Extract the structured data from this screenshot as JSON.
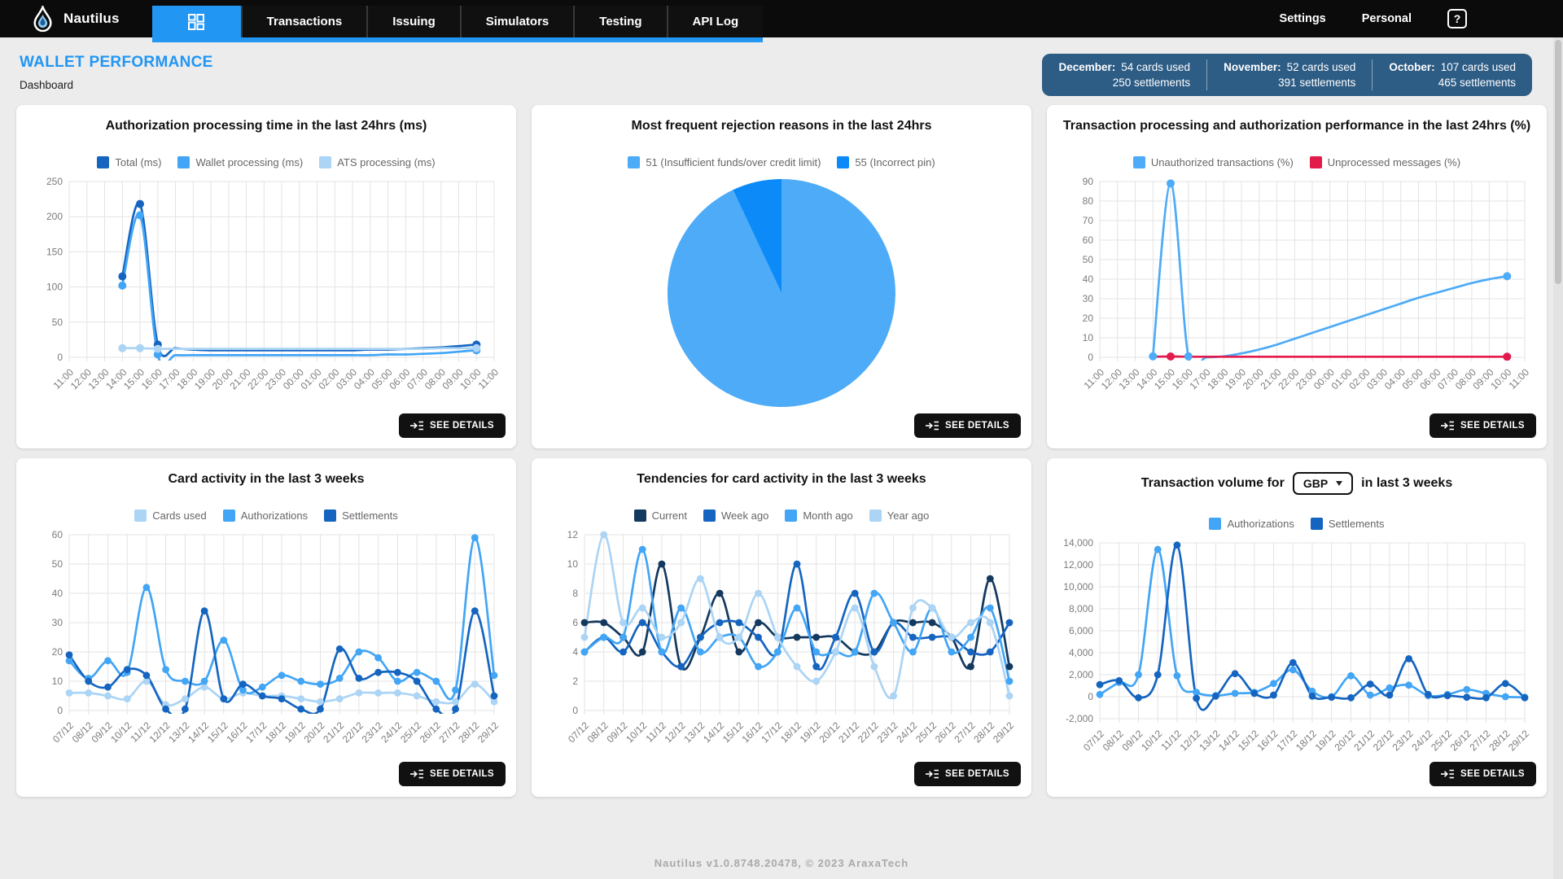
{
  "nav": {
    "brand": "Nautilus",
    "tabs": [
      {
        "label": "Transactions"
      },
      {
        "label": "Issuing"
      },
      {
        "label": "Simulators"
      },
      {
        "label": "Testing"
      },
      {
        "label": "API Log"
      }
    ],
    "settings_label": "Settings",
    "personal_label": "Personal",
    "help_glyph": "?"
  },
  "header": {
    "title": "WALLET PERFORMANCE",
    "subtitle": "Dashboard",
    "stats": [
      {
        "month": "December:",
        "cards_used": "54 cards used",
        "settlements": "250 settlements"
      },
      {
        "month": "November:",
        "cards_used": "52 cards used",
        "settlements": "391 settlements"
      },
      {
        "month": "October:",
        "cards_used": "107 cards used",
        "settlements": "465 settlements"
      }
    ]
  },
  "see_details_label": "SEE DETAILS",
  "footer": "Nautilus v1.0.8748.20478, © 2023 AraxaTech",
  "chart_data": [
    {
      "id": "authorization-processing-time",
      "type": "line",
      "title": "Authorization processing time in the last 24hrs (ms)",
      "ylim": [
        0,
        250
      ],
      "yticks": [
        0,
        50,
        100,
        150,
        200,
        250
      ],
      "categories": [
        "11:00",
        "12:00",
        "13:00",
        "14:00",
        "15:00",
        "16:00",
        "17:00",
        "18:00",
        "19:00",
        "20:00",
        "21:00",
        "22:00",
        "23:00",
        "00:00",
        "01:00",
        "02:00",
        "03:00",
        "04:00",
        "05:00",
        "06:00",
        "07:00",
        "08:00",
        "09:00",
        "10:00",
        "11:00"
      ],
      "series": [
        {
          "name": "Total (ms)",
          "color": "#1565c0",
          "values": [
            null,
            null,
            null,
            115,
            218,
            18,
            13,
            11,
            10,
            10,
            10,
            10,
            10,
            10,
            10,
            10,
            10,
            11,
            11,
            12,
            13,
            14,
            16,
            18,
            null
          ],
          "dot_indices": [
            3,
            4,
            5,
            23
          ]
        },
        {
          "name": "Wallet processing (ms)",
          "color": "#42a5f5",
          "values": [
            null,
            null,
            null,
            102,
            202,
            4,
            3,
            3,
            3,
            3,
            3,
            3,
            3,
            3,
            3,
            3,
            3,
            3,
            4,
            4,
            5,
            6,
            8,
            10,
            null
          ],
          "dot_indices": [
            3,
            4,
            5,
            23
          ]
        },
        {
          "name": "ATS processing (ms)",
          "color": "#abd4f5",
          "values": [
            null,
            null,
            null,
            13,
            13,
            12,
            12,
            12,
            12,
            12,
            12,
            12,
            12,
            12,
            12,
            12,
            12,
            12,
            12,
            12,
            12,
            13,
            13,
            13,
            null
          ],
          "dot_indices": [
            3,
            4,
            5,
            23
          ]
        }
      ]
    },
    {
      "id": "rejection-reasons",
      "type": "pie",
      "title": "Most frequent rejection reasons in the last 24hrs",
      "series": [
        {
          "name": "51 (Insufficient funds/over credit limit)",
          "color": "#4dabf7",
          "value": 93
        },
        {
          "name": "55 (Incorrect pin)",
          "color": "#0c8bf8",
          "value": 7
        }
      ]
    },
    {
      "id": "transaction-processing-performance",
      "type": "line",
      "title": "Transaction processing and authorization performance in the last 24hrs (%)",
      "ylim": [
        0,
        90
      ],
      "yticks": [
        0,
        10,
        20,
        30,
        40,
        50,
        60,
        70,
        80,
        90
      ],
      "categories": [
        "11:00",
        "12:00",
        "13:00",
        "14:00",
        "15:00",
        "16:00",
        "17:00",
        "18:00",
        "19:00",
        "20:00",
        "21:00",
        "22:00",
        "23:00",
        "00:00",
        "01:00",
        "02:00",
        "03:00",
        "04:00",
        "05:00",
        "06:00",
        "07:00",
        "08:00",
        "09:00",
        "10:00",
        "11:00"
      ],
      "series": [
        {
          "name": "Unauthorized transactions (%)",
          "color": "#4dabf7",
          "values": [
            null,
            null,
            null,
            0.5,
            89,
            0.5,
            0,
            0.5,
            2,
            4,
            6.5,
            9.5,
            12.5,
            15.5,
            18.5,
            21.5,
            24.5,
            27.5,
            30.5,
            33,
            35.5,
            38,
            40,
            41.5,
            null
          ],
          "dot_indices": [
            3,
            4,
            5,
            23
          ]
        },
        {
          "name": "Unprocessed messages (%)",
          "color": "#e31a4c",
          "values": [
            null,
            null,
            null,
            0.3,
            0.4,
            0.3,
            0.3,
            0.3,
            0.3,
            0.3,
            0.3,
            0.3,
            0.3,
            0.3,
            0.3,
            0.3,
            0.3,
            0.3,
            0.3,
            0.3,
            0.3,
            0.3,
            0.3,
            0.3,
            null
          ],
          "dot_indices": [
            4,
            23
          ]
        }
      ]
    },
    {
      "id": "card-activity",
      "type": "line",
      "title": "Card activity in the last 3 weeks",
      "ylim": [
        0,
        60
      ],
      "yticks": [
        0,
        10,
        20,
        30,
        40,
        50,
        60
      ],
      "categories": [
        "07/12",
        "08/12",
        "09/12",
        "10/12",
        "11/12",
        "12/12",
        "13/12",
        "14/12",
        "15/12",
        "16/12",
        "17/12",
        "18/12",
        "19/12",
        "20/12",
        "21/12",
        "22/12",
        "23/12",
        "24/12",
        "25/12",
        "26/12",
        "27/12",
        "28/12",
        "29/12"
      ],
      "series": [
        {
          "name": "Cards used",
          "color": "#abd4f5",
          "values": [
            6,
            6,
            5,
            4,
            10,
            2,
            4,
            8,
            4,
            6,
            5,
            5,
            4,
            3,
            4,
            6,
            6,
            6,
            5,
            3,
            3,
            9,
            3
          ]
        },
        {
          "name": "Authorizations",
          "color": "#42a5f5",
          "values": [
            17,
            11,
            17,
            13,
            42,
            14,
            10,
            10,
            24,
            7,
            8,
            12,
            10,
            9,
            11,
            20,
            18,
            10,
            13,
            10,
            7,
            59,
            12
          ]
        },
        {
          "name": "Settlements",
          "color": "#1565c0",
          "values": [
            19,
            10,
            8,
            14,
            12,
            0.5,
            0.5,
            34,
            4,
            9,
            5,
            4,
            0.5,
            0.5,
            21,
            11,
            13,
            13,
            10,
            0.5,
            0.5,
            34,
            5
          ]
        }
      ]
    },
    {
      "id": "tendencies-card-activity",
      "type": "line",
      "title": "Tendencies for card activity in the last 3 weeks",
      "ylim": [
        0,
        12
      ],
      "yticks": [
        0,
        2,
        4,
        6,
        8,
        10,
        12
      ],
      "categories": [
        "07/12",
        "08/12",
        "09/12",
        "10/12",
        "11/12",
        "12/12",
        "13/12",
        "14/12",
        "15/12",
        "16/12",
        "17/12",
        "18/12",
        "19/12",
        "20/12",
        "21/12",
        "22/12",
        "23/12",
        "24/12",
        "25/12",
        "26/12",
        "27/12",
        "28/12",
        "29/12"
      ],
      "series": [
        {
          "name": "Current",
          "color": "#14395e",
          "values": [
            6,
            6,
            5,
            4,
            10,
            3,
            5,
            8,
            4,
            6,
            5,
            5,
            5,
            5,
            4,
            4,
            6,
            6,
            6,
            5,
            3,
            9,
            3
          ]
        },
        {
          "name": "Week ago",
          "color": "#1565c0",
          "values": [
            4,
            5,
            4,
            6,
            4,
            3,
            5,
            6,
            6,
            5,
            4,
            10,
            3,
            5,
            8,
            4,
            6,
            5,
            5,
            5,
            4,
            4,
            6
          ]
        },
        {
          "name": "Month ago",
          "color": "#42a5f5",
          "values": [
            4,
            5,
            5,
            11,
            4,
            7,
            4,
            5,
            5,
            3,
            4,
            7,
            4,
            4,
            4,
            8,
            6,
            4,
            7,
            4,
            5,
            7,
            2
          ]
        },
        {
          "name": "Year ago",
          "color": "#abd4f5",
          "values": [
            5,
            12,
            6,
            7,
            5,
            6,
            9,
            5,
            5,
            8,
            5,
            3,
            2,
            4,
            7,
            3,
            1,
            7,
            7,
            5,
            6,
            6,
            1
          ]
        }
      ]
    },
    {
      "id": "transaction-volume",
      "type": "line",
      "title_parts": {
        "before": "Transaction volume for",
        "select": "GBP",
        "after": "in last 3 weeks"
      },
      "ylim": [
        -2000,
        14000
      ],
      "yticks": [
        -2000,
        0,
        2000,
        4000,
        6000,
        8000,
        10000,
        12000,
        14000
      ],
      "ytick_labels": [
        "-2,000",
        "0",
        "2,000",
        "4,000",
        "6,000",
        "8,000",
        "10,000",
        "12,000",
        "14,000"
      ],
      "categories": [
        "07/12",
        "08/12",
        "09/12",
        "10/12",
        "11/12",
        "12/12",
        "13/12",
        "14/12",
        "15/12",
        "16/12",
        "17/12",
        "18/12",
        "19/12",
        "20/12",
        "21/12",
        "22/12",
        "23/12",
        "24/12",
        "25/12",
        "26/12",
        "27/12",
        "28/12",
        "29/12"
      ],
      "series": [
        {
          "name": "Authorizations",
          "color": "#42a5f5",
          "values": [
            200,
            1300,
            2000,
            13400,
            1900,
            400,
            100,
            300,
            400,
            1200,
            2450,
            500,
            0,
            1900,
            150,
            800,
            1050,
            100,
            200,
            650,
            300,
            0,
            -50
          ]
        },
        {
          "name": "Settlements",
          "color": "#1565c0",
          "values": [
            1100,
            1450,
            -100,
            2000,
            13800,
            -150,
            50,
            2100,
            300,
            150,
            3100,
            50,
            -50,
            -100,
            1150,
            150,
            3450,
            200,
            100,
            -50,
            -100,
            1200,
            -100
          ]
        }
      ]
    }
  ],
  "colors": {
    "accent": "#2196f3",
    "stats_box": "#2d5c85",
    "dark_blue": "#1565c0",
    "medium_blue": "#42a5f5",
    "light_blue": "#abd4f5",
    "navy": "#14395e",
    "red": "#e31a4c",
    "pie_51": "#4dabf7",
    "pie_55": "#0c8bf8"
  }
}
